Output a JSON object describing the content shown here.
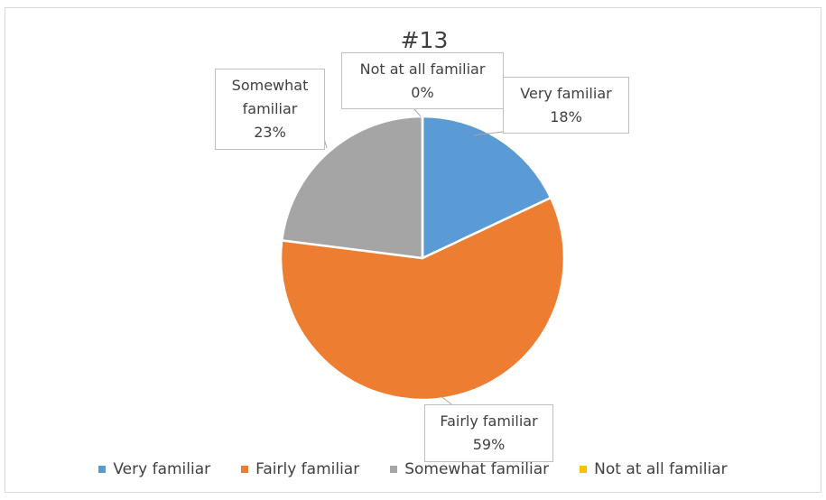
{
  "chart_data": {
    "type": "pie",
    "title": "#13",
    "categories": [
      "Very familiar",
      "Fairly familiar",
      "Somewhat familiar",
      "Not at all familiar"
    ],
    "values": [
      18,
      59,
      23,
      0
    ],
    "value_labels": [
      "18%",
      "59%",
      "23%",
      "0%"
    ],
    "colors": [
      "#5b9bd5",
      "#ed7d31",
      "#a5a5a5",
      "#ffc000"
    ],
    "legend": "bottom"
  }
}
